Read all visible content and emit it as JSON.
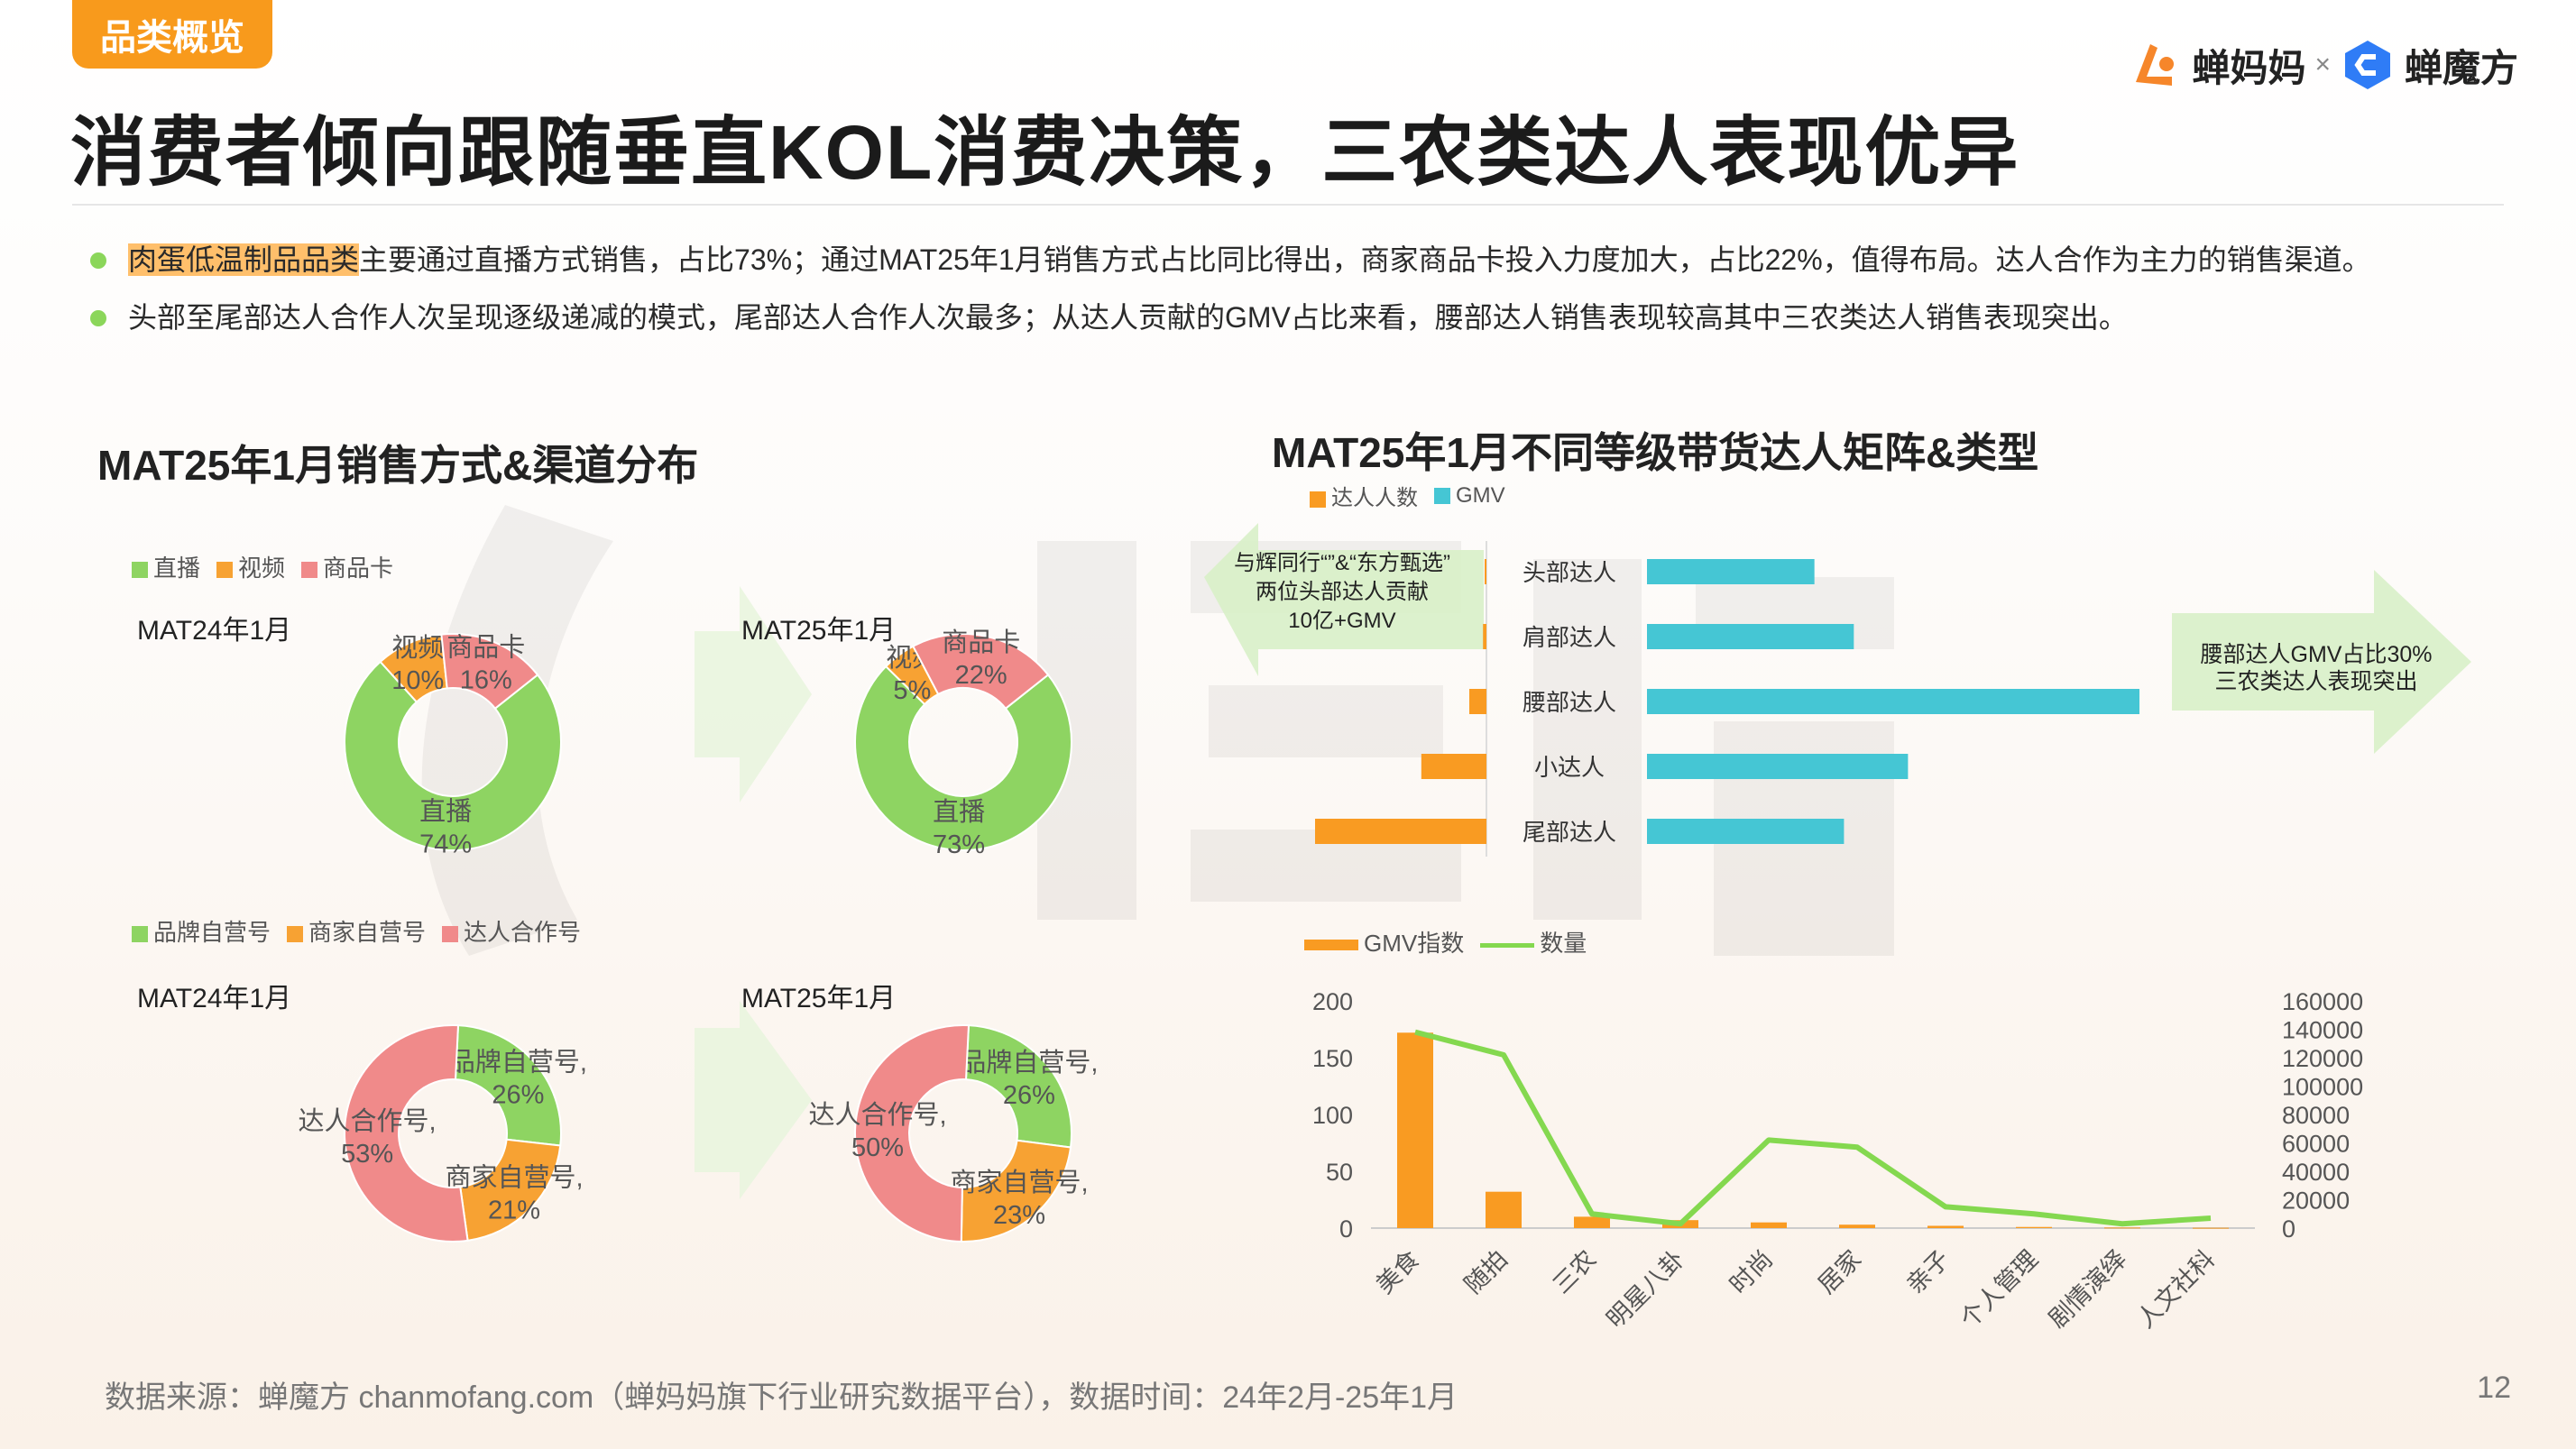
{
  "tag": "品类概览",
  "logos": {
    "left": "蝉妈妈",
    "sep": "×",
    "right": "蝉魔方"
  },
  "title": "消费者倾向跟随垂直KOL消费决策，三农类达人表现优异",
  "bullets": [
    {
      "highlight": "肉蛋低温制品品类",
      "text": "主要通过直播方式销售，占比73%；通过MAT25年1月销售方式占比同比得出，商家商品卡投入力度加大，占比22%，值得布局。达人合作为主力的销售渠道。"
    },
    {
      "highlight": "",
      "text": "头部至尾部达人合作人次呈现逐级递减的模式，尾部达人合作人次最多；从达人贡献的GMV占比来看，腰部达人销售表现较高其中三农类达人销售表现突出。"
    }
  ],
  "left_section_title": "MAT25年1月销售方式&渠道分布",
  "right_section_title": "MAT25年1月不同等级带货达人矩阵&类型",
  "donut_legend_1": [
    "直播",
    "视频",
    "商品卡"
  ],
  "donut_legend_2": [
    "品牌自营号",
    "商家自营号",
    "达人合作号"
  ],
  "period_labels": [
    "MAT24年1月",
    "MAT25年1月"
  ],
  "colors": {
    "green": "#8ed462",
    "orange": "#f7a233",
    "red": "#f08a8a",
    "cyan": "#45c6d4",
    "line": "#84d84f",
    "bar": "#f99b22"
  },
  "bar_legend": [
    "达人人数",
    "GMV"
  ],
  "annotation_left": [
    "与辉同行“”&“东方甄选”",
    "两位头部达人贡献",
    "10亿+GMV"
  ],
  "annotation_right": [
    "腰部达人GMV占比30%",
    "三农类达人表现突出"
  ],
  "combo_legend": [
    "GMV指数",
    "数量"
  ],
  "footer": "数据来源：蝉魔方 chanmofang.com（蝉妈妈旗下行业研究数据平台），数据时间：24年2月-25年1月",
  "page_number": "12",
  "chart_data": [
    {
      "type": "pie",
      "title": "MAT24年1月",
      "labels": [
        "直播",
        "视频",
        "商品卡"
      ],
      "values": [
        74,
        10,
        16
      ],
      "unit": "%"
    },
    {
      "type": "pie",
      "title": "MAT25年1月",
      "labels": [
        "直播",
        "视频",
        "商品卡"
      ],
      "values": [
        73,
        5,
        22
      ],
      "unit": "%"
    },
    {
      "type": "pie",
      "title": "MAT24年1月",
      "labels": [
        "品牌自营号",
        "商家自营号",
        "达人合作号"
      ],
      "values": [
        26,
        21,
        53
      ],
      "unit": "%"
    },
    {
      "type": "pie",
      "title": "MAT25年1月",
      "labels": [
        "品牌自营号",
        "商家自营号",
        "达人合作号"
      ],
      "values": [
        26,
        23,
        50
      ],
      "unit": "%"
    },
    {
      "type": "bar",
      "orientation": "horizontal-butterfly",
      "categories": [
        "头部达人",
        "肩部达人",
        "腰部达人",
        "小达人",
        "尾部达人"
      ],
      "series": [
        {
          "name": "达人人数",
          "values": [
            0.3,
            2,
            10,
            38,
            100
          ]
        },
        {
          "name": "GMV",
          "values": [
            34,
            42,
            100,
            53,
            40
          ]
        }
      ]
    },
    {
      "type": "bar+line",
      "categories": [
        "美食",
        "随拍",
        "三农",
        "明星八卦",
        "时尚",
        "居家",
        "亲子",
        "个人管理",
        "剧情演绎",
        "人文社科"
      ],
      "series": [
        {
          "name": "GMV指数",
          "axis": "left",
          "values": [
            172,
            32,
            10,
            7,
            5,
            3,
            2,
            1,
            0.5,
            0.3
          ]
        },
        {
          "name": "数量",
          "axis": "right",
          "values": [
            138000,
            122000,
            10000,
            3000,
            62000,
            57000,
            15000,
            10000,
            3000,
            7000
          ]
        }
      ],
      "ylim_left": [
        0,
        200
      ],
      "yticks_left": [
        "0",
        "50",
        "100",
        "150",
        "200"
      ],
      "ylim_right": [
        0,
        160000
      ],
      "yticks_right": [
        "0",
        "20000",
        "40000",
        "60000",
        "80000",
        "100000",
        "120000",
        "140000",
        "160000"
      ]
    }
  ]
}
